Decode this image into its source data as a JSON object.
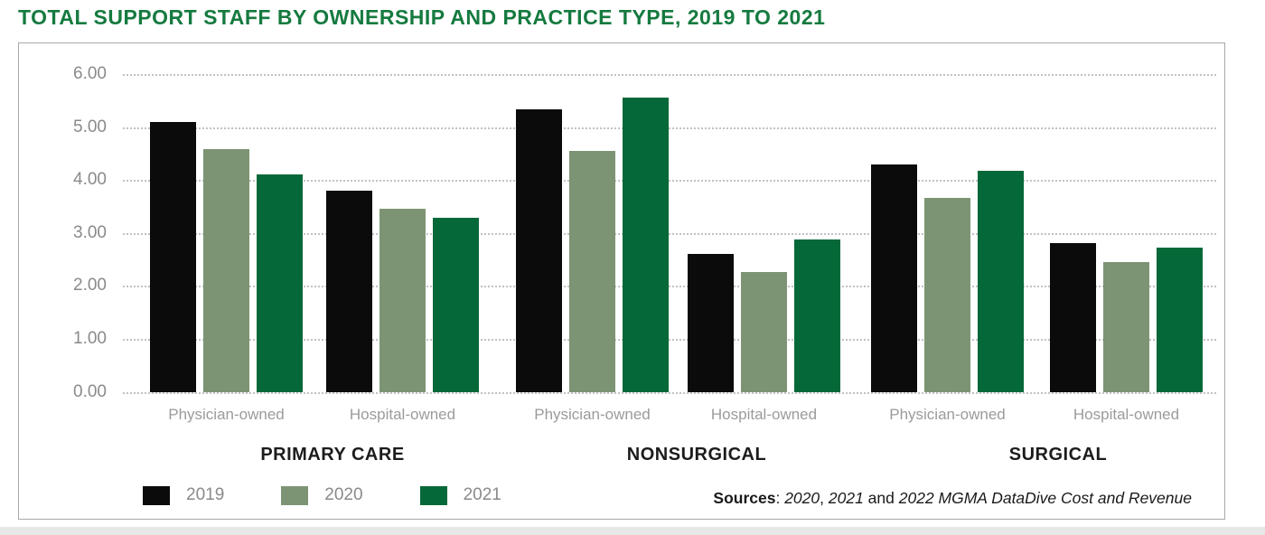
{
  "title": "TOTAL SUPPORT STAFF BY OWNERSHIP AND PRACTICE TYPE, 2019 TO 2021",
  "title_color": "#157a3f",
  "chart_data": {
    "type": "bar",
    "title": "TOTAL SUPPORT STAFF BY OWNERSHIP AND PRACTICE TYPE, 2019 TO 2021",
    "groups": [
      "PRIMARY CARE",
      "NONSURGICAL",
      "SURGICAL"
    ],
    "categories": [
      "Physician-owned",
      "Hospital-owned",
      "Physician-owned",
      "Hospital-owned",
      "Physician-owned",
      "Hospital-owned"
    ],
    "series": [
      {
        "name": "2019",
        "color": "#0b0b0b",
        "values": [
          5.1,
          3.8,
          5.33,
          2.61,
          4.3,
          2.81
        ]
      },
      {
        "name": "2020",
        "color": "#7d9474",
        "values": [
          4.58,
          3.45,
          4.55,
          2.26,
          3.67,
          2.45
        ]
      },
      {
        "name": "2021",
        "color": "#046838",
        "values": [
          4.11,
          3.29,
          5.56,
          2.87,
          4.17,
          2.73
        ]
      }
    ],
    "ylim": [
      0,
      6
    ],
    "ytick_labels": [
      "6.00",
      "5.00",
      "4.00",
      "3.00",
      "2.00",
      "1.00",
      "0.00"
    ],
    "ytick_values": [
      6,
      5,
      4,
      3,
      2,
      1,
      0
    ],
    "grid": "horizontal dotted",
    "legend_position": "bottom-left"
  },
  "legend": [
    {
      "label": "2019",
      "color": "#0b0b0b"
    },
    {
      "label": "2020",
      "color": "#7d9474"
    },
    {
      "label": "2021",
      "color": "#046838"
    }
  ],
  "sources": {
    "segments": [
      {
        "text": "Sources",
        "bold": true,
        "italic": false
      },
      {
        "text": ": ",
        "bold": false,
        "italic": false
      },
      {
        "text": "2020",
        "bold": false,
        "italic": true
      },
      {
        "text": ", ",
        "bold": false,
        "italic": false
      },
      {
        "text": "2021",
        "bold": false,
        "italic": true
      },
      {
        "text": " and ",
        "bold": false,
        "italic": false
      },
      {
        "text": "2022 MGMA DataDive Cost and Revenue",
        "bold": false,
        "italic": true
      }
    ]
  }
}
